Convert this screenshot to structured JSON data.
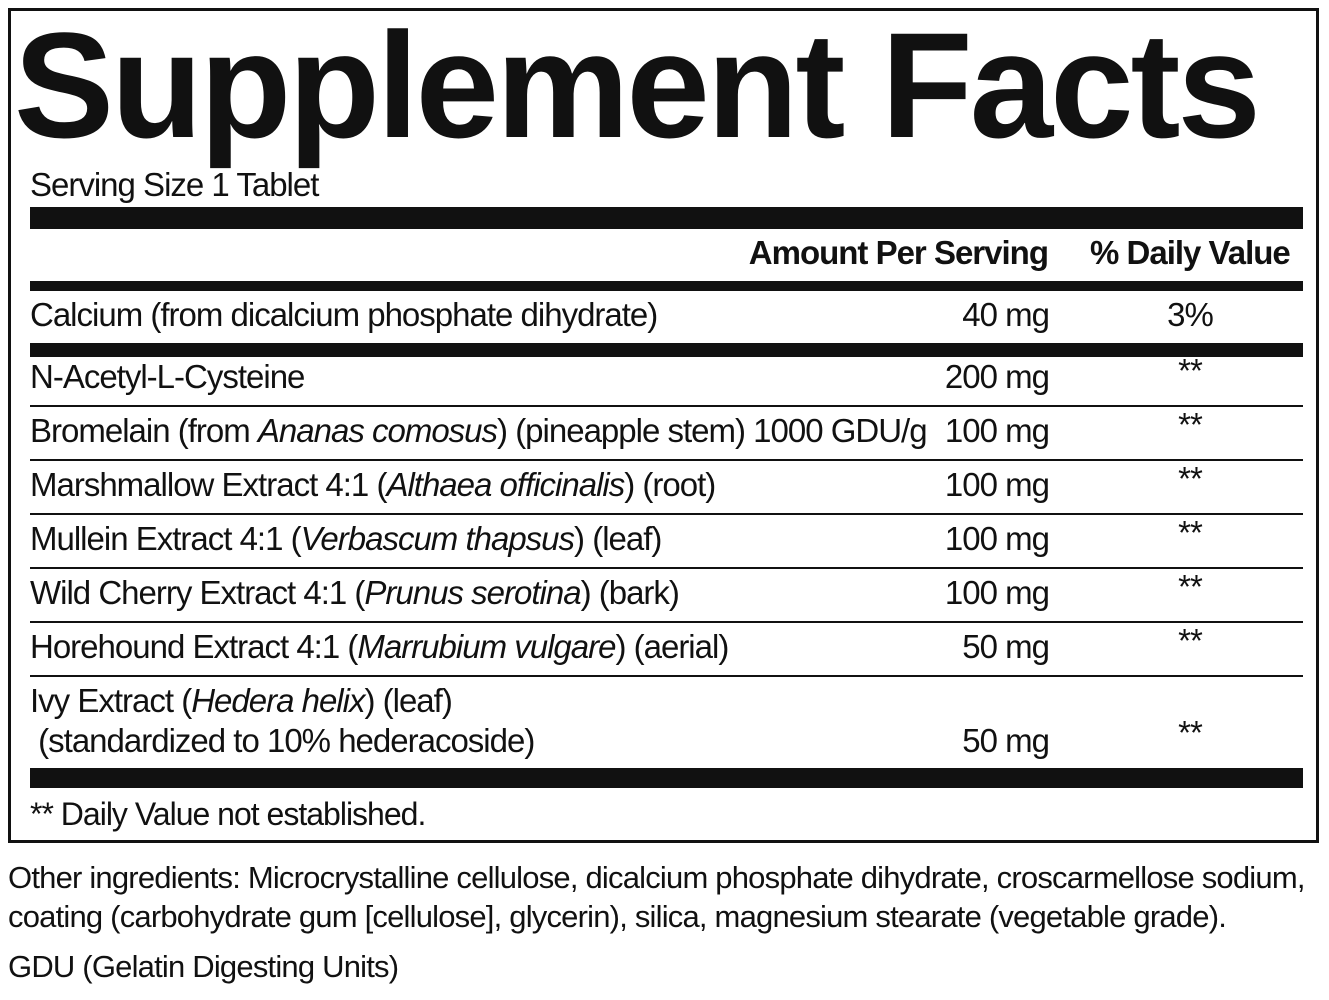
{
  "title": "Supplement Facts",
  "serving_size": "Serving Size 1 Tablet",
  "headers": {
    "amount": "Amount Per Serving",
    "dv": "% Daily Value"
  },
  "rows": [
    {
      "name": [
        "Calcium (from dicalcium phosphate dihydrate)"
      ],
      "amount": "40 mg",
      "dv": "3%"
    },
    {
      "name": [
        "N-Acetyl-L-Cysteine"
      ],
      "amount": "200 mg",
      "dv": "**"
    },
    {
      "name": [
        "Bromelain (from ",
        "Ananas comosus",
        ") (pineapple stem) 1000 GDU/g"
      ],
      "amount": "100 mg",
      "dv": "**"
    },
    {
      "name": [
        "Marshmallow Extract 4:1 (",
        "Althaea officinalis",
        ") (root)"
      ],
      "amount": "100 mg",
      "dv": "**"
    },
    {
      "name": [
        "Mullein Extract 4:1 (",
        "Verbascum thapsus",
        ") (leaf)"
      ],
      "amount": "100 mg",
      "dv": "**"
    },
    {
      "name": [
        "Wild Cherry Extract 4:1 (",
        "Prunus serotina",
        ") (bark)"
      ],
      "amount": "100 mg",
      "dv": "**"
    },
    {
      "name": [
        "Horehound Extract 4:1 (",
        "Marrubium vulgare",
        ") (aerial)"
      ],
      "amount": "50 mg",
      "dv": "**"
    },
    {
      "name": [
        "Ivy Extract (",
        "Hedera helix",
        ") (leaf)"
      ],
      "name_line2": " (standardized to 10% hederacoside)",
      "amount": "50 mg",
      "dv": "**"
    }
  ],
  "footnote": "** Daily Value not established.",
  "other_ingredients": [
    "Other ingredients: Microcrystalline cellulose, dicalcium phosphate dihydrate, croscarmellose sodium,",
    "coating (carbohydrate gum [cellulose], glycerin), silica, magnesium stearate (vegetable grade)."
  ],
  "gdu_note": "GDU (Gelatin Digesting Units)"
}
